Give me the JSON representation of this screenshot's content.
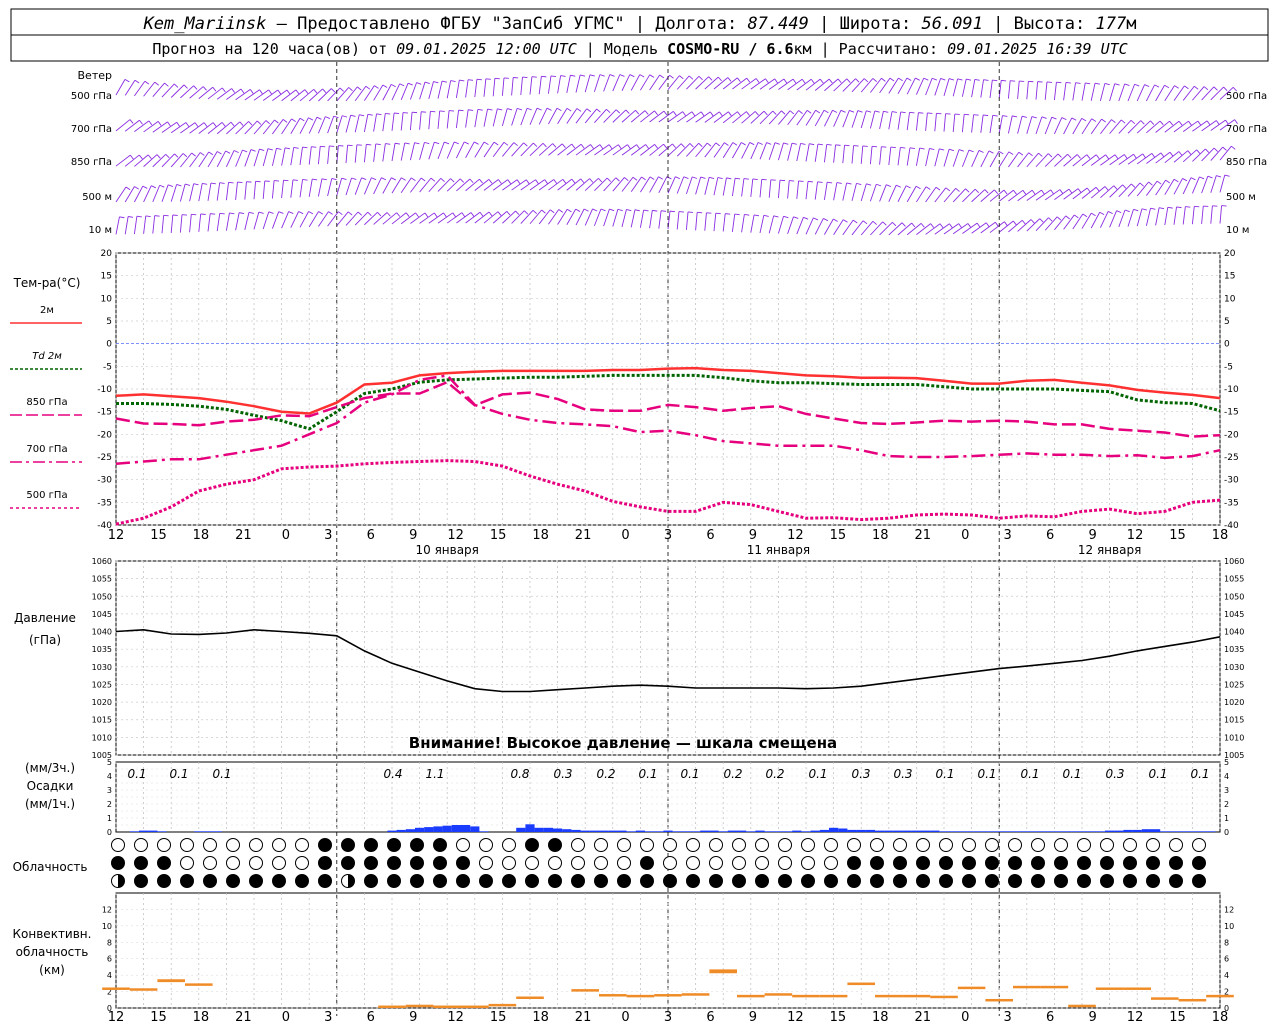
{
  "header": {
    "station": "Kem_Mariinsk",
    "provider": " — Предоставлено ФГБУ \"ЗапСиб УГМС\" | Долгота: ",
    "lon": "87.449",
    "lat_label": " | Широта: ",
    "lat": "56.091",
    "alt_label": " | Высота: ",
    "alt": "177",
    "alt_unit": "м",
    "line2_a": "Прогноз на 120 часа(ов) от ",
    "init_time": "09.01.2025 12:00 UTC",
    "line2_b": " | Модель ",
    "model": "COSMO-RU / 6.6",
    "model_unit": "км",
    "line2_c": " | Рассчитано: ",
    "calc_time": "09.01.2025 16:39 UTC"
  },
  "wind_panel": {
    "title": "Ветер",
    "levels": [
      "500 гПа",
      "700 гПа",
      "850 гПа",
      "500 м",
      "10  м"
    ]
  },
  "temp_panel": {
    "title": "Тем-ра(°C)",
    "legend": [
      "2м",
      "Td  2м",
      "850 гПа",
      "700 гПа",
      "500 гПа"
    ],
    "legend_colors": [
      "#ff3030",
      "#006400",
      "#e6007e",
      "#e6007e",
      "#e6007e"
    ]
  },
  "x_axis": {
    "hours": [
      "12",
      "15",
      "18",
      "21",
      "0",
      "3",
      "6",
      "9",
      "12",
      "15",
      "18",
      "21",
      "0",
      "3",
      "6",
      "9",
      "12",
      "15",
      "18",
      "21",
      "0",
      "3",
      "6",
      "9",
      "12",
      "15",
      "18"
    ],
    "dates": [
      "10 января",
      "11 января",
      "12 января"
    ]
  },
  "pressure_panel": {
    "title": "Давление",
    "unit": "(гПа)",
    "warning": "Внимание! Высокое давление — шкала смещена"
  },
  "precip_panel": {
    "unit1": "(мм/3ч.)",
    "title": "Осадки",
    "unit2": "(мм/1ч.)",
    "labels": [
      "0.1",
      "0.1",
      "0.1",
      "0.4",
      "1.1",
      "0.8",
      "0.3",
      "0.2",
      "0.1",
      "0.1",
      "0.2",
      "0.2",
      "0.1",
      "0.3",
      "0.3",
      "0.1",
      "0.1",
      "0.1",
      "0.1",
      "0.3",
      "0.1",
      "0.1"
    ]
  },
  "cloud_panel": {
    "title": "Облачность"
  },
  "conv_panel": {
    "title1": "Конвективн.",
    "title2": "облачность",
    "unit": "(км)"
  },
  "colors": {
    "temp2m": "#ff3030",
    "td": "#006400",
    "levels": "#e6007e",
    "pressure": "#000000",
    "precip": "#1a3cff",
    "conv": "#f08c28",
    "wind": "#8a2be2"
  },
  "chart_data": [
    {
      "type": "line",
      "title": "Тем-ра(°C)",
      "x": [
        0,
        3,
        6,
        9,
        12,
        15,
        18,
        21,
        24,
        27,
        30,
        33,
        36,
        39,
        42,
        45,
        48,
        51,
        54,
        57,
        60,
        63,
        66,
        69,
        72,
        75,
        78,
        81,
        84,
        87,
        90,
        93,
        96,
        99,
        102,
        105,
        108,
        111,
        114,
        117,
        120
      ],
      "ylim": [
        -40,
        20
      ],
      "series": [
        {
          "name": "2м",
          "values": [
            -11.5,
            -11.2,
            -11.6,
            -12,
            -12.8,
            -13.8,
            -15,
            -15.4,
            -13,
            -9,
            -8.6,
            -7,
            -6.5,
            -6.2,
            -6,
            -6,
            -6,
            -6,
            -5.8,
            -5.8,
            -5.5,
            -5.4,
            -5.8,
            -6,
            -6.5,
            -7,
            -7.2,
            -7.5,
            -7.5,
            -7.6,
            -8.2,
            -8.8,
            -8.8,
            -8.2,
            -8,
            -8.6,
            -9.2,
            -10.2,
            -10.8,
            -11.3,
            -12
          ]
        },
        {
          "name": "Td  2м",
          "values": [
            -13.2,
            -13.2,
            -13.4,
            -13.8,
            -14.5,
            -15.8,
            -17,
            -18.8,
            -15,
            -11,
            -10,
            -8.5,
            -8,
            -7.8,
            -7.6,
            -7.4,
            -7.4,
            -7.2,
            -7,
            -7,
            -7,
            -7,
            -7.5,
            -8.2,
            -8.6,
            -8.6,
            -8.8,
            -9,
            -9,
            -9,
            -9.5,
            -10,
            -10,
            -10,
            -10,
            -10.3,
            -10.6,
            -12.4,
            -13,
            -13.2,
            -14.8
          ]
        },
        {
          "name": "850 гПа",
          "values": [
            -16.5,
            -17.6,
            -17.7,
            -18,
            -17.2,
            -16.8,
            -15.8,
            -16,
            -14,
            -12,
            -11,
            -11,
            -8.5,
            -13.6,
            -11.2,
            -10.8,
            -12.2,
            -14.5,
            -14.8,
            -14.8,
            -13.5,
            -14,
            -14.8,
            -14.2,
            -13.8,
            -15.5,
            -16.5,
            -17.5,
            -17.7,
            -17.4,
            -17,
            -17.2,
            -17,
            -17.2,
            -17.8,
            -17.8,
            -18.8,
            -19.2,
            -19.6,
            -20.5,
            -20.2
          ]
        },
        {
          "name": "700 гПа",
          "values": [
            -26.5,
            -26,
            -25.5,
            -25.5,
            -24.5,
            -23.5,
            -22.5,
            -20,
            -17.5,
            -13,
            -11.2,
            -8,
            -7,
            -13.5,
            -15.5,
            -16.8,
            -17.5,
            -17.8,
            -18.2,
            -19.5,
            -19.2,
            -20.2,
            -21.5,
            -22,
            -22.5,
            -22.5,
            -22.5,
            -23.5,
            -24.8,
            -25,
            -25,
            -24.8,
            -24.5,
            -24.2,
            -24.5,
            -24.5,
            -24.8,
            -24.6,
            -25.2,
            -24.8,
            -23.5
          ]
        },
        {
          "name": "500 гПа",
          "values": [
            -39.8,
            -38.5,
            -36,
            -32.5,
            -31,
            -30,
            -27.6,
            -27.2,
            -27,
            -26.5,
            -26.2,
            -26,
            -25.8,
            -26,
            -27,
            -29.2,
            -31,
            -32.5,
            -34.8,
            -36,
            -37,
            -37,
            -35,
            -35.5,
            -37,
            -38.5,
            -38.4,
            -38.8,
            -38.5,
            -37.8,
            -37.6,
            -37.8,
            -38.5,
            -38,
            -38.2,
            -37,
            -36.5,
            -37.5,
            -37,
            -35,
            -34.5
          ]
        }
      ]
    },
    {
      "type": "line",
      "title": "Давление",
      "ylabel": "(гПа)",
      "ylim": [
        1005,
        1060
      ],
      "x": [
        0,
        3,
        6,
        9,
        12,
        15,
        18,
        21,
        24,
        27,
        30,
        33,
        36,
        39,
        42,
        45,
        48,
        51,
        54,
        57,
        60,
        63,
        66,
        69,
        72,
        75,
        78,
        81,
        84,
        87,
        90,
        93,
        96,
        99,
        102,
        105,
        108,
        111,
        114,
        117,
        120
      ],
      "series": [
        {
          "name": "",
          "values": [
            1040,
            1040.5,
            1039.3,
            1039.2,
            1039.6,
            1040.5,
            1040,
            1039.5,
            1038.8,
            1034.5,
            1031,
            1028.5,
            1026,
            1023.8,
            1023,
            1023,
            1023.5,
            1024,
            1024.5,
            1024.8,
            1024.5,
            1024,
            1024,
            1024,
            1024,
            1023.8,
            1024,
            1024.5,
            1025.5,
            1026.5,
            1027.5,
            1028.5,
            1029.5,
            1030.2,
            1031,
            1031.8,
            1033,
            1034.5,
            1035.8,
            1037,
            1038.5
          ]
        }
      ]
    },
    {
      "type": "bar",
      "title": "Осадки",
      "ylabel": "(мм/1ч.)",
      "ylim": [
        0,
        5
      ],
      "x": [
        0,
        1,
        2,
        3,
        4,
        5,
        6,
        7,
        8,
        9,
        10,
        11,
        12,
        13,
        14,
        15,
        16,
        17,
        18,
        19,
        20,
        21,
        22,
        23,
        24,
        25,
        26,
        27,
        28,
        29,
        30,
        31,
        32,
        33,
        34,
        35,
        36,
        37,
        38,
        39,
        40,
        41,
        42,
        43,
        44,
        45,
        46,
        47,
        48,
        49,
        50,
        51,
        52,
        53,
        54,
        55,
        56,
        57,
        58,
        59,
        60,
        61,
        62,
        63,
        64,
        65,
        66,
        67,
        68,
        69,
        70,
        71,
        72,
        73,
        74,
        75,
        76,
        77,
        78,
        79,
        80,
        81,
        82,
        83,
        84,
        85,
        86,
        87,
        88,
        89,
        90,
        91,
        92,
        93,
        94,
        95,
        96,
        97,
        98,
        99,
        100,
        101,
        102,
        103,
        104,
        105,
        106,
        107,
        108,
        109,
        110,
        111,
        112,
        113,
        114,
        115,
        116,
        117,
        118,
        119,
        120
      ],
      "values": [
        0,
        0,
        0.05,
        0.1,
        0.1,
        0.05,
        0,
        0,
        0,
        0.05,
        0.05,
        0.05,
        0,
        0,
        0,
        0,
        0,
        0,
        0,
        0,
        0,
        0,
        0,
        0,
        0,
        0,
        0,
        0,
        0,
        0,
        0.1,
        0.15,
        0.2,
        0.3,
        0.35,
        0.4,
        0.45,
        0.5,
        0.5,
        0.4,
        0.05,
        0,
        0,
        0,
        0.3,
        0.55,
        0.3,
        0.3,
        0.25,
        0.2,
        0.15,
        0.1,
        0.1,
        0.1,
        0.1,
        0.1,
        0.05,
        0.1,
        0.05,
        0.05,
        0.1,
        0.05,
        0.05,
        0.05,
        0.1,
        0.1,
        0.05,
        0.1,
        0.1,
        0.05,
        0.1,
        0.05,
        0.05,
        0.05,
        0.1,
        0.05,
        0.1,
        0.15,
        0.3,
        0.25,
        0.15,
        0.15,
        0.15,
        0.1,
        0.1,
        0.1,
        0.1,
        0.1,
        0.1,
        0.1,
        0.05,
        0.05,
        0.05,
        0.05,
        0.05,
        0.05,
        0.05,
        0.05,
        0.05,
        0.05,
        0.05,
        0.05,
        0.05,
        0.05,
        0.05,
        0.05,
        0.05,
        0.05,
        0.1,
        0.1,
        0.15,
        0.15,
        0.2,
        0.2,
        0.05,
        0.05,
        0.05,
        0.05,
        0.05,
        0.05,
        0
      ]
    },
    {
      "type": "heatmap",
      "title": "Облачность",
      "rows": [
        "00000000000000000000000BH0HHHHHHHHHHHHHHHHHHHHHH000000000HHHHHH0000000000000000000000000000000000000000000000000000000000000000000000000000000000000000000",
        "H0HHHHHH000000000000000FHHFHHHHHHHHHHHHHHHHH0000000000000000000HH000000000000000000000000HHHHHHHHHHHHHHHHHHHHHHHHHHHHHHHHHHHHHHHHHHHHHH",
        "QHHHHHHHHHHHHHHHHHHHHHHFQHHQQQHHHHH0HHHHHHHHHHHHHHHHHHHHHHHHHHHHHHHHHHHHHHHHHHHHHHHHHHHHHHHHHHHHHHHHHHHHHHHHHHHHHHHHHHHHHHHHHHHHHHHHHHHH"
      ]
    },
    {
      "type": "bar",
      "title": "Конвективн. облачность",
      "ylabel": "(км)",
      "ylim": [
        0,
        14
      ],
      "x": [
        0,
        3,
        6,
        9,
        12,
        15,
        18,
        21,
        24,
        27,
        30,
        33,
        36,
        39,
        42,
        45,
        48,
        51,
        54,
        57,
        60,
        63,
        66,
        69,
        72,
        75,
        78,
        81,
        84,
        87,
        90,
        93,
        96,
        99,
        102,
        105,
        108,
        111,
        114,
        117,
        120
      ],
      "values": [
        2.5,
        2.4,
        3.5,
        3,
        0,
        0,
        0,
        0,
        0,
        0,
        0.3,
        0.4,
        0.3,
        0.3,
        0.5,
        1.4,
        0,
        2.3,
        1.7,
        1.6,
        1.7,
        1.8,
        4.7,
        1.6,
        1.8,
        1.6,
        1.6,
        3.1,
        1.6,
        1.6,
        1.5,
        2.6,
        1.1,
        2.7,
        2.7,
        0.4,
        2.5,
        2.5,
        1.3,
        1.1,
        1.6
      ]
    }
  ]
}
